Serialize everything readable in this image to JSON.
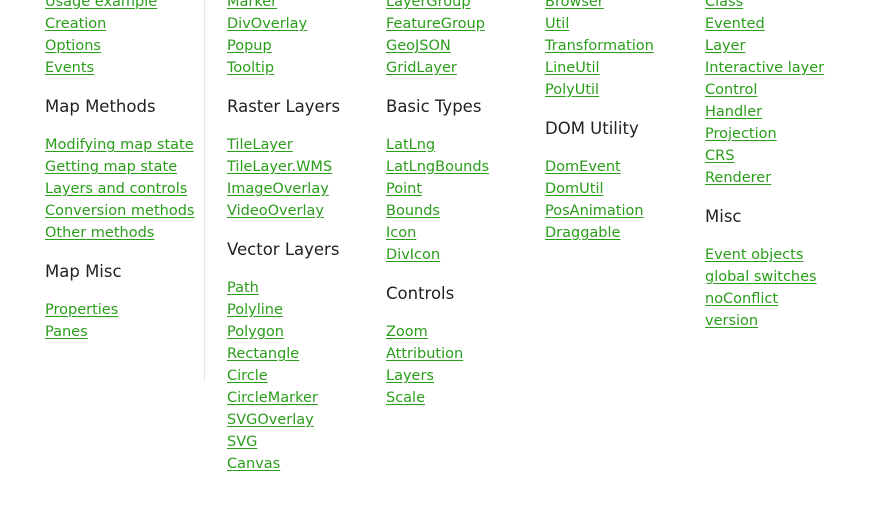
{
  "columns": [
    {
      "items": [
        {
          "type": "link",
          "text": "Usage example"
        },
        {
          "type": "link",
          "text": "Creation"
        },
        {
          "type": "link",
          "text": "Options"
        },
        {
          "type": "link",
          "text": "Events"
        },
        {
          "type": "heading",
          "text": "Map Methods"
        },
        {
          "type": "link",
          "text": "Modifying map state"
        },
        {
          "type": "link",
          "text": "Getting map state"
        },
        {
          "type": "link",
          "text": "Layers and controls"
        },
        {
          "type": "link",
          "text": "Conversion methods"
        },
        {
          "type": "link",
          "text": "Other methods"
        },
        {
          "type": "heading",
          "text": "Map Misc"
        },
        {
          "type": "link",
          "text": "Properties"
        },
        {
          "type": "link",
          "text": "Panes"
        }
      ]
    },
    {
      "items": [
        {
          "type": "link",
          "text": "Marker"
        },
        {
          "type": "link",
          "text": "DivOverlay"
        },
        {
          "type": "link",
          "text": "Popup"
        },
        {
          "type": "link",
          "text": "Tooltip"
        },
        {
          "type": "heading",
          "text": "Raster Layers"
        },
        {
          "type": "link",
          "text": "TileLayer"
        },
        {
          "type": "link",
          "text": "TileLayer.WMS"
        },
        {
          "type": "link",
          "text": "ImageOverlay"
        },
        {
          "type": "link",
          "text": "VideoOverlay"
        },
        {
          "type": "heading",
          "text": "Vector Layers"
        },
        {
          "type": "link",
          "text": "Path"
        },
        {
          "type": "link",
          "text": "Polyline"
        },
        {
          "type": "link",
          "text": "Polygon"
        },
        {
          "type": "link",
          "text": "Rectangle"
        },
        {
          "type": "link",
          "text": "Circle"
        },
        {
          "type": "link",
          "text": "CircleMarker"
        },
        {
          "type": "link",
          "text": "SVGOverlay"
        },
        {
          "type": "link",
          "text": "SVG"
        },
        {
          "type": "link",
          "text": "Canvas"
        }
      ]
    },
    {
      "items": [
        {
          "type": "link",
          "text": "LayerGroup"
        },
        {
          "type": "link",
          "text": "FeatureGroup"
        },
        {
          "type": "link",
          "text": "GeoJSON"
        },
        {
          "type": "link",
          "text": "GridLayer"
        },
        {
          "type": "heading",
          "text": "Basic Types"
        },
        {
          "type": "link",
          "text": "LatLng"
        },
        {
          "type": "link",
          "text": "LatLngBounds"
        },
        {
          "type": "link",
          "text": "Point"
        },
        {
          "type": "link",
          "text": "Bounds"
        },
        {
          "type": "link",
          "text": "Icon"
        },
        {
          "type": "link",
          "text": "DivIcon"
        },
        {
          "type": "heading",
          "text": "Controls"
        },
        {
          "type": "link",
          "text": "Zoom"
        },
        {
          "type": "link",
          "text": "Attribution"
        },
        {
          "type": "link",
          "text": "Layers"
        },
        {
          "type": "link",
          "text": "Scale"
        }
      ]
    },
    {
      "items": [
        {
          "type": "link",
          "text": "Browser"
        },
        {
          "type": "link",
          "text": "Util"
        },
        {
          "type": "link",
          "text": "Transformation"
        },
        {
          "type": "link",
          "text": "LineUtil"
        },
        {
          "type": "link",
          "text": "PolyUtil"
        },
        {
          "type": "heading",
          "text": "DOM Utility"
        },
        {
          "type": "link",
          "text": "DomEvent"
        },
        {
          "type": "link",
          "text": "DomUtil"
        },
        {
          "type": "link",
          "text": "PosAnimation"
        },
        {
          "type": "link",
          "text": "Draggable"
        }
      ]
    },
    {
      "items": [
        {
          "type": "link",
          "text": "Class"
        },
        {
          "type": "link",
          "text": "Evented"
        },
        {
          "type": "link",
          "text": "Layer"
        },
        {
          "type": "link",
          "text": "Interactive layer"
        },
        {
          "type": "link",
          "text": "Control"
        },
        {
          "type": "link",
          "text": "Handler"
        },
        {
          "type": "link",
          "text": "Projection"
        },
        {
          "type": "link",
          "text": "CRS"
        },
        {
          "type": "link",
          "text": "Renderer"
        },
        {
          "type": "heading",
          "text": "Misc"
        },
        {
          "type": "link",
          "text": "Event objects"
        },
        {
          "type": "link",
          "text": "global switches"
        },
        {
          "type": "link",
          "text": "noConflict"
        },
        {
          "type": "link",
          "text": "version"
        }
      ]
    }
  ]
}
